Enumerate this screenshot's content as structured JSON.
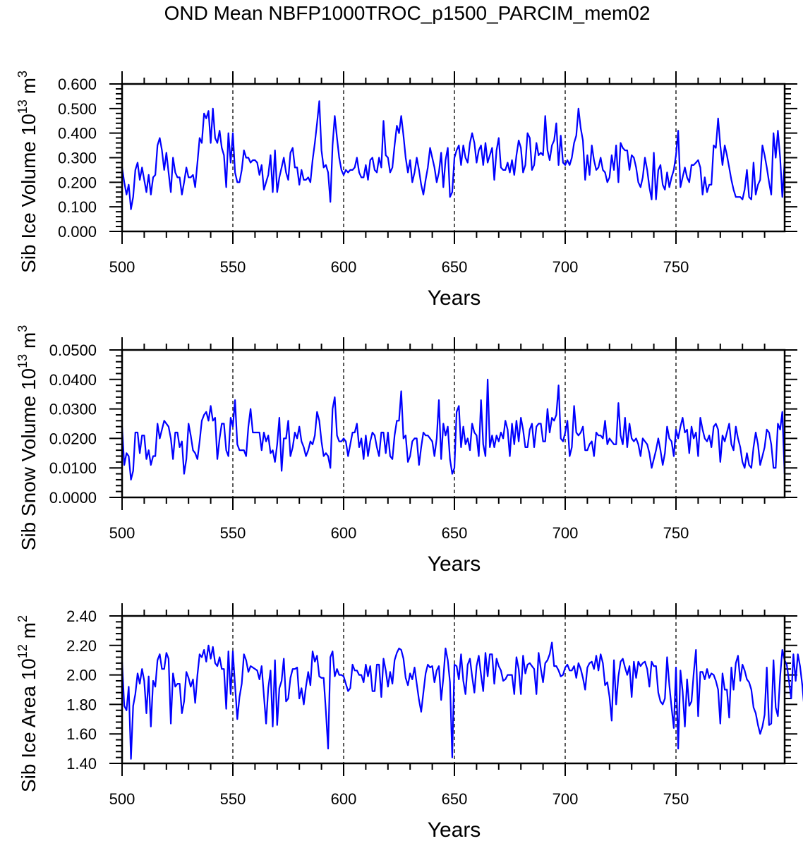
{
  "title": "OND Mean NBFP1000TROC_p1500_PARCIM_mem02",
  "line_color": "#0000ff",
  "chart_data": [
    {
      "type": "line",
      "xlabel": "Years",
      "ylabel": {
        "text": "Sib Ice Volume 10",
        "exp": "13",
        "unit": " m",
        "unit_exp": "3"
      },
      "xlim": [
        500,
        799
      ],
      "ylim": [
        0,
        0.6
      ],
      "xticks": [
        500,
        550,
        600,
        650,
        700,
        750
      ],
      "xtick_labels": [
        "500",
        "550",
        "600",
        "650",
        "700",
        "750"
      ],
      "yticks": [
        0,
        0.1,
        0.2,
        0.3,
        0.4,
        0.5,
        0.6
      ],
      "ytick_labels": [
        "0.000",
        "0.100",
        "0.200",
        "0.300",
        "0.400",
        "0.500",
        "0.600"
      ],
      "yminor_step": 0.02,
      "ref_lines_x": [
        550,
        600,
        650,
        700,
        750
      ],
      "x_start": 500,
      "values": [
        0.26,
        0.2,
        0.15,
        0.19,
        0.09,
        0.14,
        0.25,
        0.28,
        0.21,
        0.26,
        0.21,
        0.16,
        0.23,
        0.15,
        0.22,
        0.23,
        0.35,
        0.38,
        0.33,
        0.25,
        0.32,
        0.24,
        0.16,
        0.3,
        0.24,
        0.22,
        0.22,
        0.15,
        0.2,
        0.26,
        0.22,
        0.22,
        0.23,
        0.18,
        0.28,
        0.38,
        0.36,
        0.48,
        0.46,
        0.49,
        0.36,
        0.5,
        0.38,
        0.36,
        0.41,
        0.34,
        0.31,
        0.18,
        0.4,
        0.28,
        0.4,
        0.24,
        0.2,
        0.2,
        0.25,
        0.33,
        0.3,
        0.3,
        0.28,
        0.29,
        0.29,
        0.28,
        0.23,
        0.27,
        0.17,
        0.2,
        0.23,
        0.31,
        0.16,
        0.33,
        0.16,
        0.22,
        0.26,
        0.3,
        0.24,
        0.21,
        0.32,
        0.34,
        0.26,
        0.26,
        0.19,
        0.25,
        0.21,
        0.21,
        0.22,
        0.2,
        0.29,
        0.36,
        0.44,
        0.53,
        0.33,
        0.26,
        0.27,
        0.24,
        0.12,
        0.35,
        0.47,
        0.38,
        0.3,
        0.25,
        0.23,
        0.25,
        0.24,
        0.25,
        0.25,
        0.26,
        0.3,
        0.24,
        0.22,
        0.22,
        0.27,
        0.21,
        0.29,
        0.3,
        0.25,
        0.24,
        0.3,
        0.26,
        0.45,
        0.31,
        0.3,
        0.24,
        0.26,
        0.35,
        0.43,
        0.4,
        0.47,
        0.39,
        0.3,
        0.24,
        0.29,
        0.2,
        0.24,
        0.3,
        0.25,
        0.19,
        0.15,
        0.21,
        0.26,
        0.34,
        0.3,
        0.26,
        0.2,
        0.24,
        0.32,
        0.18,
        0.29,
        0.34,
        0.14,
        0.16,
        0.3,
        0.33,
        0.35,
        0.27,
        0.35,
        0.3,
        0.28,
        0.36,
        0.4,
        0.36,
        0.28,
        0.33,
        0.35,
        0.27,
        0.36,
        0.28,
        0.31,
        0.34,
        0.21,
        0.33,
        0.38,
        0.26,
        0.25,
        0.25,
        0.28,
        0.24,
        0.29,
        0.23,
        0.31,
        0.37,
        0.34,
        0.24,
        0.27,
        0.4,
        0.38,
        0.25,
        0.27,
        0.36,
        0.31,
        0.32,
        0.31,
        0.47,
        0.33,
        0.29,
        0.35,
        0.37,
        0.44,
        0.27,
        0.39,
        0.28,
        0.27,
        0.29,
        0.27,
        0.3,
        0.36,
        0.39,
        0.5,
        0.42,
        0.37,
        0.21,
        0.31,
        0.23,
        0.35,
        0.29,
        0.25,
        0.26,
        0.3,
        0.25,
        0.24,
        0.2,
        0.22,
        0.31,
        0.25,
        0.35,
        0.2,
        0.36,
        0.34,
        0.33,
        0.33,
        0.25,
        0.31,
        0.3,
        0.26,
        0.2,
        0.18,
        0.22,
        0.3,
        0.25,
        0.18,
        0.13,
        0.32,
        0.13,
        0.25,
        0.27,
        0.19,
        0.17,
        0.24,
        0.18,
        0.22,
        0.25,
        0.31,
        0.41,
        0.18,
        0.22,
        0.26,
        0.22,
        0.2,
        0.27,
        0.27,
        0.28,
        0.29,
        0.26,
        0.15,
        0.22,
        0.16,
        0.19,
        0.19,
        0.35,
        0.34,
        0.46,
        0.35,
        0.27,
        0.35,
        0.31,
        0.26,
        0.21,
        0.17,
        0.14,
        0.14,
        0.14,
        0.13,
        0.17,
        0.25,
        0.14,
        0.13,
        0.28,
        0.15,
        0.19,
        0.21,
        0.35,
        0.31,
        0.26,
        0.2,
        0.15,
        0.4,
        0.3,
        0.41,
        0.3,
        0.14,
        0.28
      ]
    },
    {
      "type": "line",
      "xlabel": "Years",
      "ylabel": {
        "text": "Sib Snow Volume 10",
        "exp": "13",
        "unit": " m",
        "unit_exp": "3"
      },
      "xlim": [
        500,
        799
      ],
      "ylim": [
        0,
        0.05
      ],
      "xticks": [
        500,
        550,
        600,
        650,
        700,
        750
      ],
      "xtick_labels": [
        "500",
        "550",
        "600",
        "650",
        "700",
        "750"
      ],
      "yticks": [
        0,
        0.01,
        0.02,
        0.03,
        0.04,
        0.05
      ],
      "ytick_labels": [
        "0.0000",
        "0.0100",
        "0.0200",
        "0.0300",
        "0.0400",
        "0.0500"
      ],
      "yminor_step": 0.002,
      "ref_lines_x": [
        550,
        600,
        650,
        700,
        750
      ],
      "x_start": 500,
      "values": [
        0.024,
        0.011,
        0.015,
        0.014,
        0.006,
        0.009,
        0.022,
        0.022,
        0.015,
        0.021,
        0.021,
        0.013,
        0.016,
        0.011,
        0.014,
        0.014,
        0.025,
        0.02,
        0.023,
        0.026,
        0.025,
        0.024,
        0.02,
        0.013,
        0.022,
        0.022,
        0.017,
        0.019,
        0.008,
        0.013,
        0.025,
        0.021,
        0.016,
        0.015,
        0.013,
        0.019,
        0.026,
        0.028,
        0.029,
        0.026,
        0.031,
        0.026,
        0.027,
        0.013,
        0.02,
        0.025,
        0.025,
        0.016,
        0.014,
        0.027,
        0.024,
        0.033,
        0.018,
        0.016,
        0.016,
        0.016,
        0.014,
        0.024,
        0.03,
        0.022,
        0.022,
        0.022,
        0.022,
        0.016,
        0.022,
        0.019,
        0.021,
        0.015,
        0.016,
        0.012,
        0.018,
        0.027,
        0.009,
        0.02,
        0.02,
        0.026,
        0.014,
        0.017,
        0.022,
        0.02,
        0.024,
        0.019,
        0.017,
        0.014,
        0.016,
        0.019,
        0.018,
        0.021,
        0.029,
        0.026,
        0.019,
        0.014,
        0.015,
        0.014,
        0.01,
        0.03,
        0.034,
        0.021,
        0.019,
        0.019,
        0.02,
        0.019,
        0.014,
        0.018,
        0.022,
        0.022,
        0.025,
        0.017,
        0.02,
        0.013,
        0.021,
        0.014,
        0.019,
        0.022,
        0.021,
        0.017,
        0.014,
        0.022,
        0.022,
        0.015,
        0.022,
        0.014,
        0.013,
        0.021,
        0.026,
        0.026,
        0.036,
        0.02,
        0.021,
        0.012,
        0.014,
        0.019,
        0.02,
        0.02,
        0.011,
        0.017,
        0.022,
        0.021,
        0.021,
        0.02,
        0.019,
        0.014,
        0.02,
        0.033,
        0.013,
        0.025,
        0.021,
        0.024,
        0.013,
        0.008,
        0.01,
        0.029,
        0.031,
        0.017,
        0.024,
        0.018,
        0.02,
        0.016,
        0.025,
        0.022,
        0.021,
        0.014,
        0.033,
        0.018,
        0.014,
        0.04,
        0.017,
        0.021,
        0.017,
        0.021,
        0.019,
        0.022,
        0.02,
        0.026,
        0.023,
        0.014,
        0.025,
        0.018,
        0.026,
        0.019,
        0.027,
        0.023,
        0.017,
        0.017,
        0.023,
        0.025,
        0.017,
        0.024,
        0.025,
        0.025,
        0.019,
        0.019,
        0.03,
        0.022,
        0.027,
        0.026,
        0.028,
        0.038,
        0.02,
        0.019,
        0.022,
        0.026,
        0.014,
        0.017,
        0.031,
        0.022,
        0.021,
        0.022,
        0.024,
        0.016,
        0.016,
        0.018,
        0.019,
        0.014,
        0.022,
        0.021,
        0.021,
        0.02,
        0.026,
        0.018,
        0.02,
        0.019,
        0.018,
        0.018,
        0.032,
        0.021,
        0.018,
        0.027,
        0.017,
        0.025,
        0.02,
        0.019,
        0.02,
        0.018,
        0.014,
        0.02,
        0.019,
        0.018,
        0.015,
        0.01,
        0.013,
        0.016,
        0.02,
        0.016,
        0.011,
        0.015,
        0.024,
        0.02,
        0.019,
        0.014,
        0.023,
        0.02,
        0.024,
        0.027,
        0.022,
        0.023,
        0.015,
        0.024,
        0.02,
        0.022,
        0.014,
        0.027,
        0.023,
        0.02,
        0.019,
        0.021,
        0.017,
        0.024,
        0.025,
        0.023,
        0.012,
        0.021,
        0.019,
        0.022,
        0.025,
        0.018,
        0.016,
        0.024,
        0.02,
        0.017,
        0.012,
        0.01,
        0.015,
        0.011,
        0.01,
        0.017,
        0.022,
        0.018,
        0.011,
        0.014,
        0.017,
        0.023,
        0.022,
        0.018,
        0.01,
        0.01,
        0.025,
        0.023,
        0.029,
        0.008
      ]
    },
    {
      "type": "line",
      "xlabel": "Years",
      "ylabel": {
        "text": "Sib Ice Area 10",
        "exp": "12",
        "unit": " m",
        "unit_exp": "2"
      },
      "xlim": [
        500,
        799
      ],
      "ylim": [
        1.4,
        2.4
      ],
      "xticks": [
        500,
        550,
        600,
        650,
        700,
        750
      ],
      "xtick_labels": [
        "500",
        "550",
        "600",
        "650",
        "700",
        "750"
      ],
      "yticks": [
        1.4,
        1.6,
        1.8,
        2.0,
        2.2,
        2.4
      ],
      "ytick_labels": [
        "1.40",
        "1.60",
        "1.80",
        "2.00",
        "2.20",
        "2.40"
      ],
      "yminor_step": 0.04,
      "ref_lines_x": [
        550,
        600,
        650,
        700,
        750
      ],
      "x_start": 500,
      "values": [
        2.09,
        1.79,
        1.76,
        1.92,
        1.43,
        1.79,
        1.87,
        2.01,
        1.94,
        2.04,
        1.96,
        1.74,
        1.99,
        1.65,
        1.96,
        1.92,
        2.1,
        2.14,
        2.04,
        2.04,
        2.15,
        2.11,
        1.67,
        2.01,
        1.92,
        1.94,
        1.94,
        1.74,
        1.82,
        2.02,
        1.98,
        1.92,
        1.97,
        1.81,
        2.0,
        2.14,
        2.12,
        2.17,
        2.09,
        2.2,
        2.11,
        2.19,
        2.08,
        2.06,
        2.12,
        2.04,
        2.04,
        1.77,
        2.16,
        1.87,
        2.16,
        1.93,
        1.7,
        1.85,
        1.94,
        2.14,
        2.1,
        2.02,
        2.06,
        2.05,
        2.04,
        2.03,
        1.97,
        2.06,
        1.86,
        1.67,
        1.91,
        2.03,
        1.65,
        2.1,
        1.66,
        1.91,
        1.96,
        2.11,
        1.82,
        1.84,
        1.98,
        2.04,
        2.04,
        2.05,
        1.84,
        1.91,
        1.8,
        1.92,
        2.02,
        1.93,
        2.16,
        2.09,
        2.13,
        1.99,
        1.98,
        1.98,
        1.75,
        1.5,
        2.12,
        2.16,
        1.99,
        2.04,
        2.0,
        2.0,
        1.99,
        1.94,
        1.89,
        1.91,
        2.07,
        2.03,
        2.03,
        2.0,
        2.0,
        1.95,
        2.07,
        1.99,
        2.06,
        1.89,
        1.89,
        2.07,
        2.07,
        1.85,
        2.11,
        2.03,
        1.92,
        2.02,
        1.94,
        2.1,
        2.15,
        2.18,
        2.17,
        2.11,
        1.98,
        1.93,
        2.01,
        1.97,
        2.05,
        1.94,
        1.83,
        1.75,
        1.88,
        2.01,
        2.07,
        2.05,
        2.06,
        1.95,
        2.03,
        2.06,
        1.83,
        1.98,
        2.18,
        2.1,
        1.95,
        1.44,
        2.07,
        2.06,
        1.97,
        2.14,
        1.96,
        1.87,
        2.07,
        2.11,
        1.99,
        1.88,
        2.06,
        2.13,
        2.0,
        1.89,
        2.15,
        1.99,
        2.14,
        2.14,
        1.94,
        2.11,
        2.06,
        2.03,
        1.96,
        1.97,
        2.0,
        2.0,
        2.0,
        1.87,
        2.12,
        2.04,
        1.87,
        2.13,
        2.01,
        2.07,
        2.08,
        2.06,
        2.04,
        1.87,
        2.15,
        2.04,
        1.95,
        2.08,
        2.1,
        2.14,
        2.22,
        2.06,
        2.06,
        2.03,
        1.99,
        2.0,
        2.05,
        2.07,
        2.03,
        2.03,
        2.06,
        1.98,
        2.08,
        2.04,
        1.98,
        1.9,
        2.05,
        2.08,
        2.09,
        2.04,
        2.13,
        2.03,
        2.14,
        2.08,
        1.93,
        1.95,
        1.85,
        1.69,
        2.1,
        1.8,
        1.99,
        2.09,
        2.11,
        2.05,
        2.0,
        2.06,
        1.85,
        2.09,
        1.98,
        2.09,
        2.06,
        2.08,
        2.09,
        2.04,
        1.92,
        2.09,
        2.06,
        2.06,
        1.88,
        1.82,
        1.8,
        1.84,
        2.12,
        1.93,
        1.78,
        1.64,
        2.05,
        1.5,
        2.03,
        1.89,
        1.65,
        1.97,
        1.79,
        1.82,
        2.01,
        2.17,
        1.72,
        2.02,
        2.02,
        1.97,
        2.04,
        1.98,
        2.01,
        2.0,
        1.96,
        1.9,
        1.67,
        2.01,
        1.9,
        1.9,
        1.71,
        2.05,
        1.9,
        2.08,
        2.13,
        1.96,
        2.07,
        2.03,
        1.97,
        1.95,
        1.9,
        1.78,
        1.74,
        1.66,
        1.6,
        1.65,
        1.73,
        2.05,
        1.66,
        1.67,
        2.1,
        1.78,
        1.72,
        1.99,
        2.17,
        2.1,
        2.07,
        1.96,
        1.84,
        2.14,
        1.96,
        2.14,
        2.06,
        1.93,
        1.76,
        1.64
      ]
    }
  ]
}
